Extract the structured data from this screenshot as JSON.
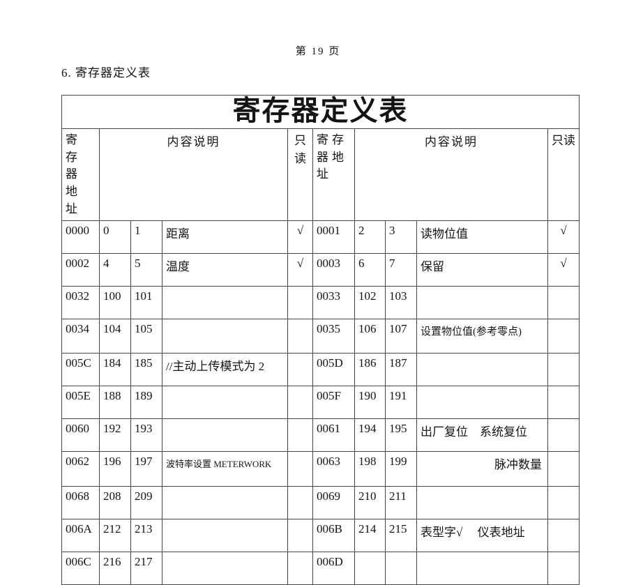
{
  "page": {
    "page_number_label": "第 19 页",
    "section_heading": "6. 寄存器定义表"
  },
  "table": {
    "title": "寄存器定义表",
    "headers": {
      "address": "寄存器地址",
      "description": "内容说明",
      "readonly": "只读"
    },
    "rows": [
      {
        "left": {
          "addr": "0000",
          "reg_lo": "0",
          "reg_hi": "1",
          "desc": "距离",
          "readonly": "√",
          "desc_style": ""
        },
        "right": {
          "addr": "0001",
          "reg_lo": "2",
          "reg_hi": "3",
          "desc": "读物位值",
          "readonly": "√",
          "desc_style": ""
        }
      },
      {
        "left": {
          "addr": "0002",
          "reg_lo": "4",
          "reg_hi": "5",
          "desc": "温度",
          "readonly": "√",
          "desc_style": ""
        },
        "right": {
          "addr": "0003",
          "reg_lo": "6",
          "reg_hi": "7",
          "desc": "保留",
          "readonly": "√",
          "desc_style": ""
        }
      },
      {
        "left": {
          "addr": "0032",
          "reg_lo": "100",
          "reg_hi": "101",
          "desc": "",
          "readonly": "",
          "desc_style": ""
        },
        "right": {
          "addr": "0033",
          "reg_lo": "102",
          "reg_hi": "103",
          "desc": "",
          "readonly": "",
          "desc_style": ""
        }
      },
      {
        "left": {
          "addr": "0034",
          "reg_lo": "104",
          "reg_hi": "105",
          "desc": "",
          "readonly": "",
          "desc_style": ""
        },
        "right": {
          "addr": "0035",
          "reg_lo": "106",
          "reg_hi": "107",
          "desc": "设置物位值(参考零点)",
          "readonly": "",
          "desc_style": "note"
        }
      },
      {
        "left": {
          "addr": "005C",
          "reg_lo": "184",
          "reg_hi": "185",
          "desc": "//主动上传模式为 2",
          "readonly": "",
          "desc_style": ""
        },
        "right": {
          "addr": "005D",
          "reg_lo": "186",
          "reg_hi": "187",
          "desc": "",
          "readonly": "",
          "desc_style": ""
        }
      },
      {
        "left": {
          "addr": "005E",
          "reg_lo": "188",
          "reg_hi": "189",
          "desc": "",
          "readonly": "",
          "desc_style": ""
        },
        "right": {
          "addr": "005F",
          "reg_lo": "190",
          "reg_hi": "191",
          "desc": "",
          "readonly": "",
          "desc_style": ""
        }
      },
      {
        "left": {
          "addr": "0060",
          "reg_lo": "192",
          "reg_hi": "193",
          "desc": "",
          "readonly": "",
          "desc_style": ""
        },
        "right": {
          "addr": "0061",
          "reg_lo": "194",
          "reg_hi": "195",
          "desc": "出厂复位　系统复位",
          "readonly": "",
          "desc_style": ""
        }
      },
      {
        "left": {
          "addr": "0062",
          "reg_lo": "196",
          "reg_hi": "197",
          "desc": "波特率设置 METERWORK",
          "readonly": "",
          "desc_style": "small"
        },
        "right": {
          "addr": "0063",
          "reg_lo": "198",
          "reg_hi": "199",
          "desc": "脉冲数量",
          "readonly": "",
          "desc_style": "right"
        }
      },
      {
        "left": {
          "addr": "0068",
          "reg_lo": "208",
          "reg_hi": "209",
          "desc": "",
          "readonly": "",
          "desc_style": ""
        },
        "right": {
          "addr": "0069",
          "reg_lo": "210",
          "reg_hi": "211",
          "desc": "",
          "readonly": "",
          "desc_style": ""
        }
      },
      {
        "left": {
          "addr": "006A",
          "reg_lo": "212",
          "reg_hi": "213",
          "desc": "",
          "readonly": "",
          "desc_style": ""
        },
        "right": {
          "addr": "006B",
          "reg_lo": "214",
          "reg_hi": "215",
          "desc": "表型字√　 仪表地址",
          "readonly": "",
          "desc_style": ""
        }
      },
      {
        "left": {
          "addr": "006C",
          "reg_lo": "216",
          "reg_hi": "217",
          "desc": "",
          "readonly": "",
          "desc_style": ""
        },
        "right": {
          "addr": "006D",
          "reg_lo": "",
          "reg_hi": "",
          "desc": "",
          "readonly": "",
          "desc_style": ""
        }
      }
    ]
  }
}
